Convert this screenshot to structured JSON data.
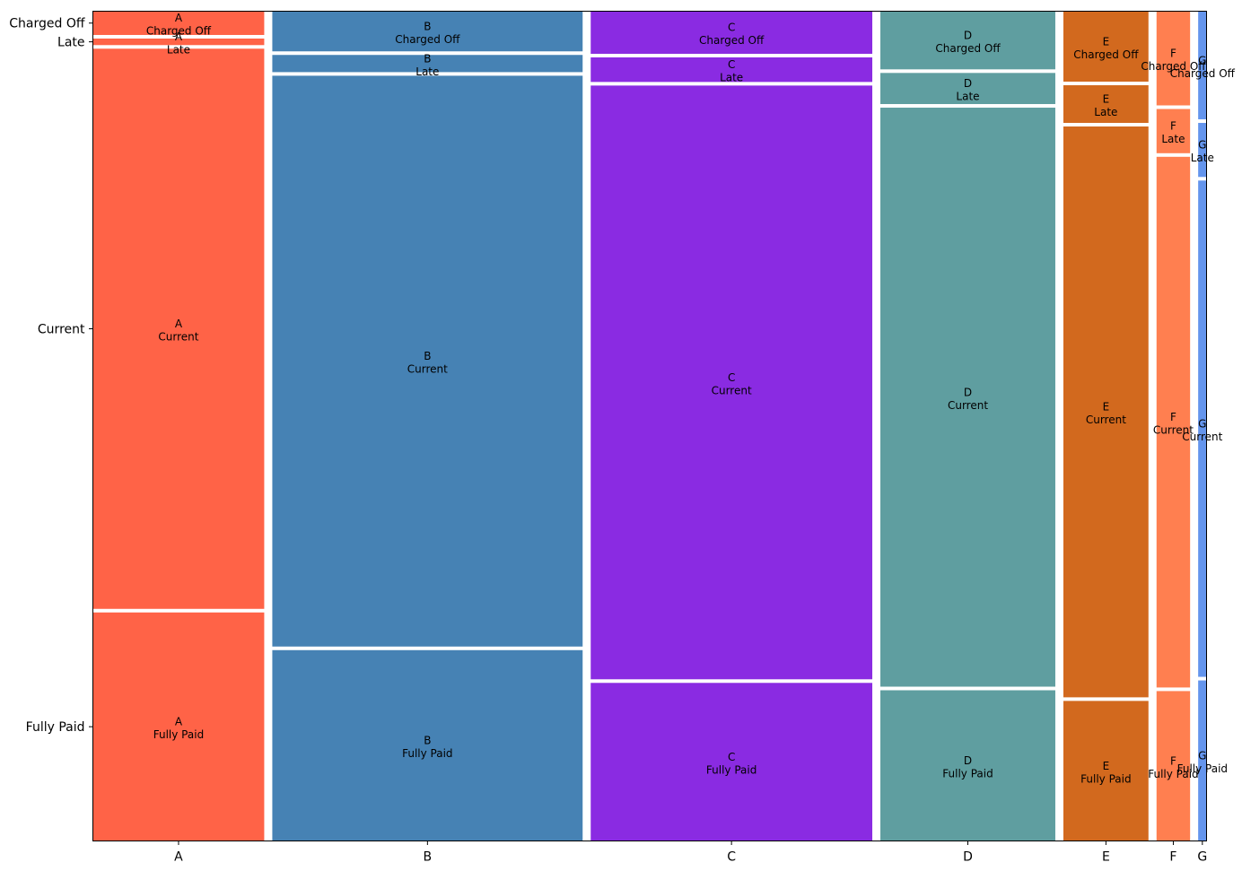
{
  "chart_data": {
    "type": "mosaic",
    "title": "",
    "xlabel": "",
    "ylabel": "",
    "x_categories": [
      "A",
      "B",
      "C",
      "D",
      "E",
      "F",
      "G"
    ],
    "y_categories": [
      "Fully Paid",
      "Current",
      "Late",
      "Charged Off"
    ],
    "y_tick_labels": [
      "Fully Paid",
      "Current",
      "Late",
      "Charged Off"
    ],
    "column_shares": [
      0.143,
      0.259,
      0.235,
      0.146,
      0.071,
      0.028,
      0.007
    ],
    "row_shares": {
      "A": [
        0.279,
        0.684,
        0.008,
        0.029
      ],
      "B": [
        0.233,
        0.697,
        0.021,
        0.049
      ],
      "C": [
        0.193,
        0.725,
        0.03,
        0.052
      ],
      "D": [
        0.184,
        0.707,
        0.038,
        0.071
      ],
      "E": [
        0.171,
        0.697,
        0.046,
        0.086
      ],
      "F": [
        0.183,
        0.648,
        0.054,
        0.115
      ],
      "G": [
        0.196,
        0.606,
        0.066,
        0.132
      ]
    },
    "colors": {
      "A": "#ff6347",
      "B": "#4682b4",
      "C": "#8a2be2",
      "D": "#5f9ea0",
      "E": "#d2691e",
      "F": "#ff7f50",
      "G": "#6495ed"
    },
    "gap_color": "#ffffff",
    "cell_labels": [
      {
        "top": "A",
        "bottom": "Fully Paid"
      },
      {
        "top": "A",
        "bottom": "Current"
      },
      {
        "top": "A",
        "bottom": "Late"
      },
      {
        "top": "A",
        "bottom": "Charged Off"
      },
      {
        "top": "B",
        "bottom": "Fully Paid"
      },
      {
        "top": "B",
        "bottom": "Current"
      },
      {
        "top": "B",
        "bottom": "Late"
      },
      {
        "top": "B",
        "bottom": "Charged Off"
      },
      {
        "top": "C",
        "bottom": "Fully Paid"
      },
      {
        "top": "C",
        "bottom": "Current"
      },
      {
        "top": "C",
        "bottom": "Late"
      },
      {
        "top": "C",
        "bottom": "Charged Off"
      },
      {
        "top": "D",
        "bottom": "Fully Paid"
      },
      {
        "top": "D",
        "bottom": "Current"
      },
      {
        "top": "D",
        "bottom": "Late"
      },
      {
        "top": "D",
        "bottom": "Charged Off"
      },
      {
        "top": "E",
        "bottom": "Fully Paid"
      },
      {
        "top": "E",
        "bottom": "Current"
      },
      {
        "top": "E",
        "bottom": "Late"
      },
      {
        "top": "E",
        "bottom": "Charged Off"
      },
      {
        "top": "F",
        "bottom": "Fully Paid"
      },
      {
        "top": "F",
        "bottom": "Current"
      },
      {
        "top": "F",
        "bottom": "Late"
      },
      {
        "top": "F",
        "bottom": "Charged Off"
      },
      {
        "top": "G",
        "bottom": "Fully Paid"
      },
      {
        "top": "G",
        "bottom": "Current"
      },
      {
        "top": "G",
        "bottom": "Late"
      },
      {
        "top": "G",
        "bottom": "Charged Off"
      }
    ]
  }
}
